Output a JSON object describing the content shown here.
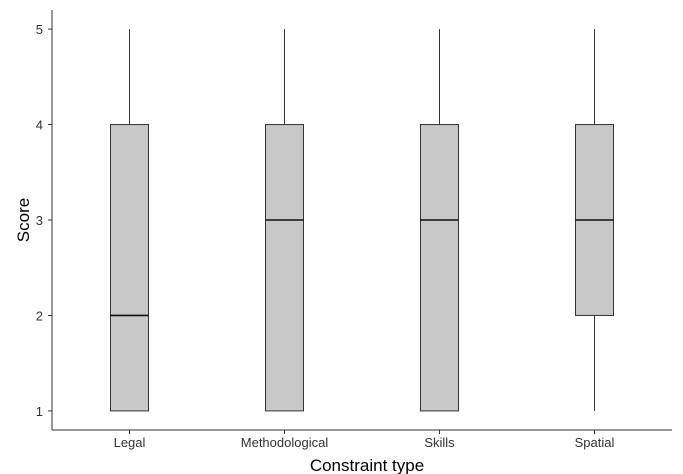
{
  "chart_data": {
    "type": "boxplot",
    "xlabel": "Constraint type",
    "ylabel": "Score",
    "ylim": [
      0.8,
      5.2
    ],
    "yticks": [
      1,
      2,
      3,
      4,
      5
    ],
    "grid": false,
    "categories": [
      "Legal",
      "Methodological",
      "Skills",
      "Spatial"
    ],
    "boxes": [
      {
        "category": "Legal",
        "min": 1,
        "q1": 1,
        "median": 2,
        "q3": 4,
        "max": 5
      },
      {
        "category": "Methodological",
        "min": 1,
        "q1": 1,
        "median": 3,
        "q3": 4,
        "max": 5
      },
      {
        "category": "Skills",
        "min": 1,
        "q1": 1,
        "median": 3,
        "q3": 4,
        "max": 5
      },
      {
        "category": "Spatial",
        "min": 1,
        "q1": 2,
        "median": 3,
        "q3": 4,
        "max": 5
      }
    ],
    "colors": {
      "box_fill": "#c8c8c8",
      "stroke": "#333333",
      "axis": "#333333"
    }
  }
}
